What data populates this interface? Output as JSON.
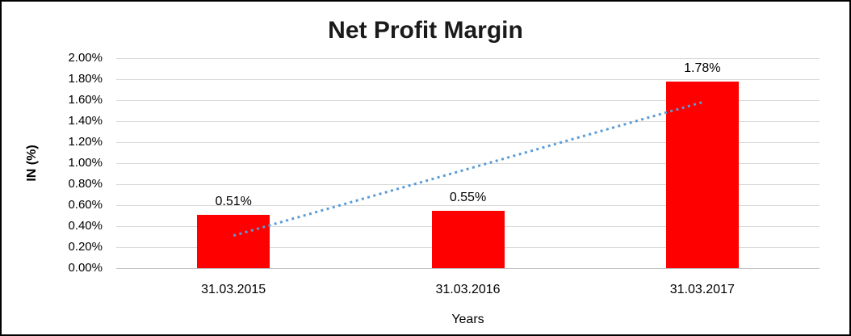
{
  "chart_data": {
    "type": "bar",
    "title": "Net Profit Margin",
    "xlabel": "Years",
    "ylabel": "IN (%)",
    "categories": [
      "31.03.2015",
      "31.03.2016",
      "31.03.2017"
    ],
    "values": [
      0.51,
      0.55,
      1.78
    ],
    "data_labels": [
      "0.51%",
      "0.55%",
      "1.78%"
    ],
    "ylim": [
      0,
      2
    ],
    "ytick_step": 0.2,
    "ytick_labels": [
      "0.00%",
      "0.20%",
      "0.40%",
      "0.60%",
      "0.80%",
      "1.00%",
      "1.20%",
      "1.40%",
      "1.60%",
      "1.80%",
      "2.00%"
    ],
    "grid": "horizontal",
    "legend_position": "none",
    "bar_color": "#ff0000",
    "gridline_color": "#d9d9d9",
    "axis_line_color": "#bfbfbf",
    "trendline": {
      "type": "linear",
      "style": "dotted",
      "color": "#5b9bd5",
      "start_value": 0.31,
      "end_value": 1.58
    }
  }
}
